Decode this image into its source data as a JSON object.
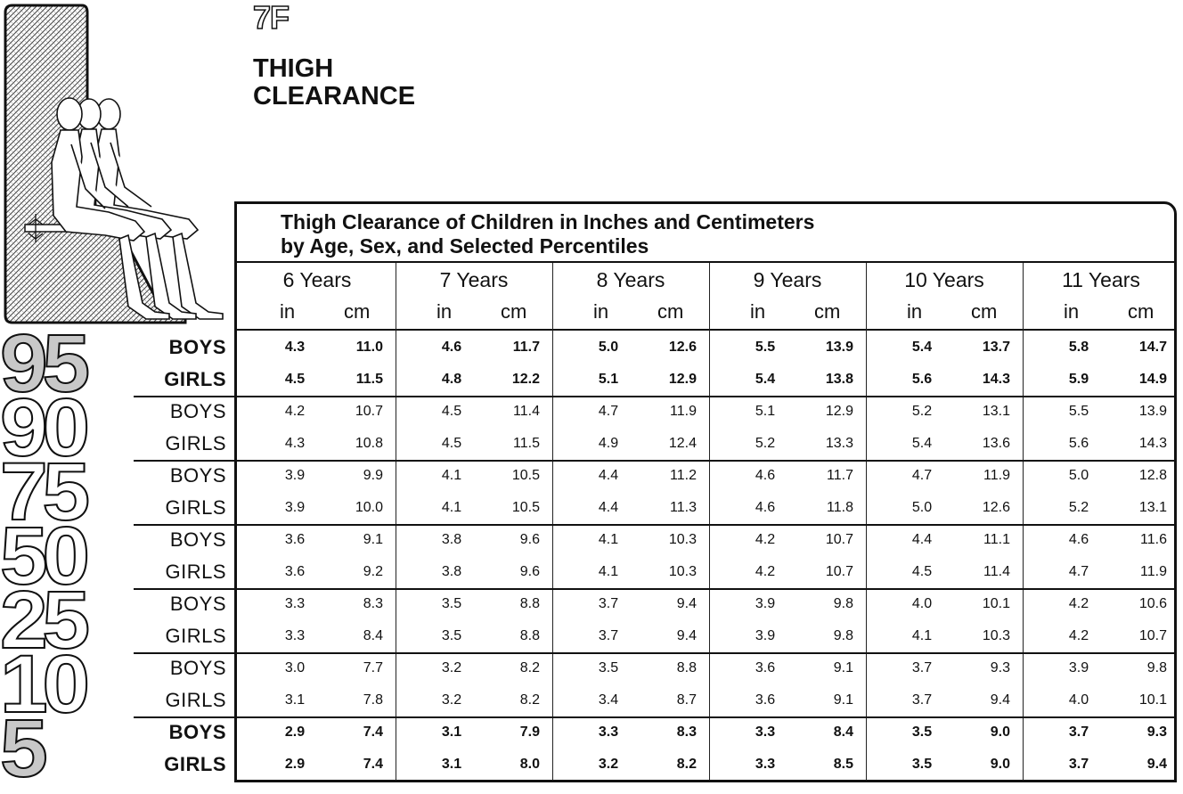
{
  "section": {
    "number": "7F",
    "title_line1": "THIGH",
    "title_line2": "CLEARANCE"
  },
  "table": {
    "caption_line1": "Thigh Clearance of Children in Inches and Centimeters",
    "caption_line2": "by Age, Sex, and Selected Percentiles",
    "age_columns": [
      "6 Years",
      "7 Years",
      "8 Years",
      "9 Years",
      "10 Years",
      "11 Years"
    ],
    "unit_in": "in",
    "unit_cm": "cm",
    "groups": [
      {
        "percentile": "95",
        "rows": [
          {
            "sex": "BOYS",
            "values": [
              "4.3",
              "11.0",
              "4.6",
              "11.7",
              "5.0",
              "12.6",
              "5.5",
              "13.9",
              "5.4",
              "13.7",
              "5.8",
              "14.7"
            ]
          },
          {
            "sex": "GIRLS",
            "values": [
              "4.5",
              "11.5",
              "4.8",
              "12.2",
              "5.1",
              "12.9",
              "5.4",
              "13.8",
              "5.6",
              "14.3",
              "5.9",
              "14.9"
            ]
          }
        ]
      },
      {
        "percentile": "90",
        "rows": [
          {
            "sex": "BOYS",
            "values": [
              "4.2",
              "10.7",
              "4.5",
              "11.4",
              "4.7",
              "11.9",
              "5.1",
              "12.9",
              "5.2",
              "13.1",
              "5.5",
              "13.9"
            ]
          },
          {
            "sex": "GIRLS",
            "values": [
              "4.3",
              "10.8",
              "4.5",
              "11.5",
              "4.9",
              "12.4",
              "5.2",
              "13.3",
              "5.4",
              "13.6",
              "5.6",
              "14.3"
            ]
          }
        ]
      },
      {
        "percentile": "75",
        "rows": [
          {
            "sex": "BOYS",
            "values": [
              "3.9",
              "9.9",
              "4.1",
              "10.5",
              "4.4",
              "11.2",
              "4.6",
              "11.7",
              "4.7",
              "11.9",
              "5.0",
              "12.8"
            ]
          },
          {
            "sex": "GIRLS",
            "values": [
              "3.9",
              "10.0",
              "4.1",
              "10.5",
              "4.4",
              "11.3",
              "4.6",
              "11.8",
              "5.0",
              "12.6",
              "5.2",
              "13.1"
            ]
          }
        ]
      },
      {
        "percentile": "50",
        "rows": [
          {
            "sex": "BOYS",
            "values": [
              "3.6",
              "9.1",
              "3.8",
              "9.6",
              "4.1",
              "10.3",
              "4.2",
              "10.7",
              "4.4",
              "11.1",
              "4.6",
              "11.6"
            ]
          },
          {
            "sex": "GIRLS",
            "values": [
              "3.6",
              "9.2",
              "3.8",
              "9.6",
              "4.1",
              "10.3",
              "4.2",
              "10.7",
              "4.5",
              "11.4",
              "4.7",
              "11.9"
            ]
          }
        ]
      },
      {
        "percentile": "25",
        "rows": [
          {
            "sex": "BOYS",
            "values": [
              "3.3",
              "8.3",
              "3.5",
              "8.8",
              "3.7",
              "9.4",
              "3.9",
              "9.8",
              "4.0",
              "10.1",
              "4.2",
              "10.6"
            ]
          },
          {
            "sex": "GIRLS",
            "values": [
              "3.3",
              "8.4",
              "3.5",
              "8.8",
              "3.7",
              "9.4",
              "3.9",
              "9.8",
              "4.1",
              "10.3",
              "4.2",
              "10.7"
            ]
          }
        ]
      },
      {
        "percentile": "10",
        "rows": [
          {
            "sex": "BOYS",
            "values": [
              "3.0",
              "7.7",
              "3.2",
              "8.2",
              "3.5",
              "8.8",
              "3.6",
              "9.1",
              "3.7",
              "9.3",
              "3.9",
              "9.8"
            ]
          },
          {
            "sex": "GIRLS",
            "values": [
              "3.1",
              "7.8",
              "3.2",
              "8.2",
              "3.4",
              "8.7",
              "3.6",
              "9.1",
              "3.7",
              "9.4",
              "4.0",
              "10.1"
            ]
          }
        ]
      },
      {
        "percentile": "5",
        "rows": [
          {
            "sex": "BOYS",
            "values": [
              "2.9",
              "7.4",
              "3.1",
              "7.9",
              "3.3",
              "8.3",
              "3.3",
              "8.4",
              "3.5",
              "9.0",
              "3.7",
              "9.3"
            ]
          },
          {
            "sex": "GIRLS",
            "values": [
              "2.9",
              "7.4",
              "3.1",
              "8.0",
              "3.2",
              "8.2",
              "3.3",
              "8.5",
              "3.5",
              "9.0",
              "3.7",
              "9.4"
            ]
          }
        ]
      }
    ],
    "bold_percentiles": [
      "95",
      "5"
    ]
  }
}
